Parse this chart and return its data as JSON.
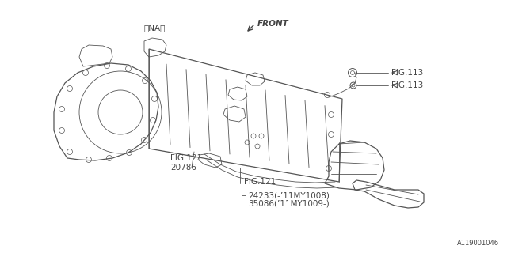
{
  "bg_color": "#ffffff",
  "line_color": "#555555",
  "text_color": "#444444",
  "part_number": "A119001046",
  "labels": {
    "part1": "24233(-’11MY1008)",
    "part2": "35086(’11MY1009-)",
    "fig121_top": "FIG.121",
    "fig121_mid": "FIG.121",
    "part3": "20786",
    "fig113_top": "FIG.113",
    "fig113_bot": "FIG.113",
    "na": "〈NA〉",
    "front": "FRONT"
  },
  "figsize": [
    6.4,
    3.2
  ],
  "dpi": 100
}
